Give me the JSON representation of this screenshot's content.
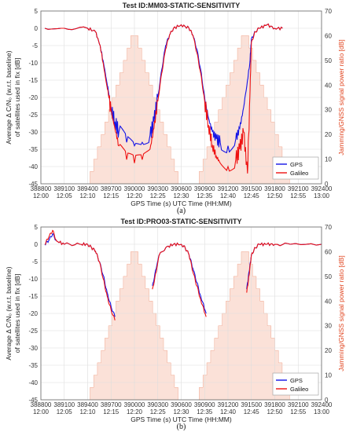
{
  "colors": {
    "gps": "#1414e6",
    "galileo": "#ee1111",
    "jamming_fill": "#fbe1d8",
    "jamming_edge": "#f0a890",
    "right_axis": "#e0401a",
    "grid": "#dddddd"
  },
  "chart_data": [
    {
      "type": "line",
      "title": "Test ID:MM03-STATIC-SENSITIVITY",
      "caption": "(a)",
      "xlabel": "GPS Time (s) UTC Time (HH:MM)",
      "ylabel_lines": [
        "Average Δ C/N₀ (w.r.t. baseline)",
        "of satellites used in fix [dB]"
      ],
      "ylabel_right": "Jamming/GNSS signal power ratio [dB]",
      "xlim": [
        388800,
        392400
      ],
      "ylim": [
        -45,
        5
      ],
      "ylim_right": [
        0,
        70
      ],
      "xticks": [
        388800,
        389100,
        389400,
        389700,
        390000,
        390300,
        390600,
        390900,
        391200,
        391500,
        391800,
        392100,
        392400
      ],
      "xticks_utc": [
        "12:00",
        "12:05",
        "12:10",
        "12:15",
        "12:20",
        "12:25",
        "12:30",
        "12:35",
        "12:40",
        "12:45",
        "12:50",
        "12:55",
        "13:00"
      ],
      "yticks": [
        5,
        0,
        -5,
        -10,
        -15,
        -20,
        -25,
        -30,
        -35,
        -40,
        -45
      ],
      "yticks_right": [
        70,
        60,
        50,
        40,
        30,
        20,
        10,
        0
      ],
      "grid": true,
      "legend_position": "bottom-right",
      "jamming": {
        "name": "Jamming/GNSS signal power ratio",
        "x": [
          389430,
          389970,
          390030,
          390560,
          391030,
          391370,
          391460
        ],
        "y": [
          0,
          60,
          60,
          0,
          0,
          60,
          60
        ],
        "peaks": [
          [
            389430,
            390000,
            390560
          ],
          [
            390830,
            391420,
            391990
          ]
        ],
        "peak_value": 60
      },
      "series": [
        {
          "name": "GPS",
          "x": [
            388850,
            389100,
            389400,
            389500,
            389560,
            389620,
            389660,
            389700,
            389750,
            389800,
            389900,
            390000,
            390100,
            390200,
            390250,
            390300,
            390350,
            390400,
            390450,
            390500,
            390600,
            390700,
            390750,
            390800,
            390850,
            390900,
            390950,
            391000,
            391050,
            391100,
            391200,
            391300,
            391350,
            391400,
            391450,
            391480,
            391500,
            391550,
            391600,
            391700,
            391800,
            391900
          ],
          "y": [
            0,
            0,
            0,
            -1,
            -5,
            -12,
            -17,
            -23,
            -27,
            -30,
            -33,
            -34,
            -33,
            -31,
            -27,
            -20,
            -12,
            -5,
            -2,
            0,
            1,
            0,
            -2,
            -6,
            -12,
            -20,
            -26,
            -30,
            -32,
            -33,
            -34,
            -32,
            -29,
            -23,
            -15,
            -10,
            -3,
            -1,
            0,
            1,
            0,
            0
          ]
        },
        {
          "name": "Galileo",
          "x": [
            388850,
            389100,
            389400,
            389500,
            389560,
            389620,
            389660,
            389700,
            389750,
            389800,
            389900,
            390000,
            390100,
            390200,
            390250,
            390300,
            390350,
            390400,
            390450,
            390500,
            390600,
            390700,
            390750,
            390800,
            390850,
            390900,
            390950,
            391000,
            391050,
            391100,
            391200,
            391300,
            391350,
            391400,
            391450,
            391480,
            391500,
            391550,
            391600,
            391700,
            391800,
            391900
          ],
          "y": [
            0,
            0,
            0,
            -1,
            -5,
            -13,
            -18,
            -24,
            -29,
            -34,
            -38,
            -39,
            -38,
            -35,
            -29,
            -21,
            -13,
            -6,
            -2,
            0,
            1,
            0,
            -2,
            -7,
            -13,
            -21,
            -28,
            -34,
            -37,
            -39,
            -40,
            -38,
            -35,
            -30,
            -42,
            -20,
            -4,
            -1,
            0,
            1,
            0,
            0
          ]
        }
      ]
    },
    {
      "type": "line",
      "title": "Test ID:PRO03-STATIC-SENSITIVITY",
      "caption": "(b)",
      "xlabel": "GPS Time (s) UTC Time (HH:MM)",
      "ylabel_lines": [
        "Average Δ C/N₀ (w.r.t. baseline)",
        "of satellites used in fix [dB]"
      ],
      "ylabel_right": "Jamming/GNSS signal power ratio [dB]",
      "xlim": [
        388800,
        392400
      ],
      "ylim": [
        -45,
        5
      ],
      "ylim_right": [
        0,
        70
      ],
      "xticks": [
        388800,
        389100,
        389400,
        389700,
        390000,
        390300,
        390600,
        390900,
        391200,
        391500,
        391800,
        392100,
        392400
      ],
      "xticks_utc": [
        "12:00",
        "12:05",
        "12:10",
        "12:15",
        "12:20",
        "12:25",
        "12:30",
        "12:35",
        "12:40",
        "12:45",
        "12:50",
        "12:55",
        "13:00"
      ],
      "yticks": [
        5,
        0,
        -5,
        -10,
        -15,
        -20,
        -25,
        -30,
        -35,
        -40,
        -45
      ],
      "yticks_right": [
        70,
        60,
        50,
        40,
        30,
        20,
        10,
        0
      ],
      "grid": true,
      "legend_position": "bottom-right",
      "jamming": {
        "name": "Jamming/GNSS signal power ratio",
        "peaks": [
          [
            389430,
            390000,
            390560
          ],
          [
            390830,
            391420,
            391990
          ]
        ],
        "peak_value": 60
      },
      "series": [
        {
          "name": "GPS",
          "segments": [
            {
              "x": [
                388850,
                388900,
                388950,
                389000,
                389100,
                389300,
                389400,
                389450,
                389500,
                389550,
                389600,
                389650,
                389700,
                389750
              ],
              "y": [
                0,
                1,
                3,
                1,
                0,
                0,
                0,
                -1,
                -2,
                -5,
                -9,
                -14,
                -18,
                -21
              ]
            },
            {
              "x": [
                390230,
                390280,
                390320,
                390400,
                390500,
                390600,
                390650,
                390700,
                390750,
                390800,
                390850,
                390920
              ],
              "y": [
                -12,
                -7,
                -3,
                -1,
                0,
                0,
                -1,
                -3,
                -7,
                -11,
                -15,
                -20
              ]
            },
            {
              "x": [
                391440,
                391470,
                391500,
                391550,
                391600,
                391700,
                391800,
                392000,
                392400
              ],
              "y": [
                -13,
                -8,
                -3,
                -1,
                0,
                0,
                0,
                0,
                0
              ]
            }
          ]
        },
        {
          "name": "Galileo",
          "segments": [
            {
              "x": [
                388850,
                388900,
                388950,
                389000,
                389100,
                389300,
                389400,
                389450,
                389500,
                389550,
                389600,
                389650,
                389700,
                389750
              ],
              "y": [
                0,
                2,
                4,
                1,
                0,
                0,
                0,
                -1,
                -2,
                -5,
                -10,
                -15,
                -19,
                -22
              ]
            },
            {
              "x": [
                390230,
                390280,
                390320,
                390400,
                390500,
                390600,
                390650,
                390700,
                390750,
                390800,
                390850,
                390920
              ],
              "y": [
                -13,
                -8,
                -3,
                -1,
                0,
                0,
                -1,
                -3,
                -8,
                -12,
                -16,
                -21
              ]
            },
            {
              "x": [
                391440,
                391470,
                391500,
                391550,
                391600,
                391700,
                391800,
                392000,
                392400
              ],
              "y": [
                -14,
                -9,
                -3,
                -1,
                0,
                0,
                0,
                0,
                0
              ]
            }
          ]
        }
      ]
    }
  ]
}
